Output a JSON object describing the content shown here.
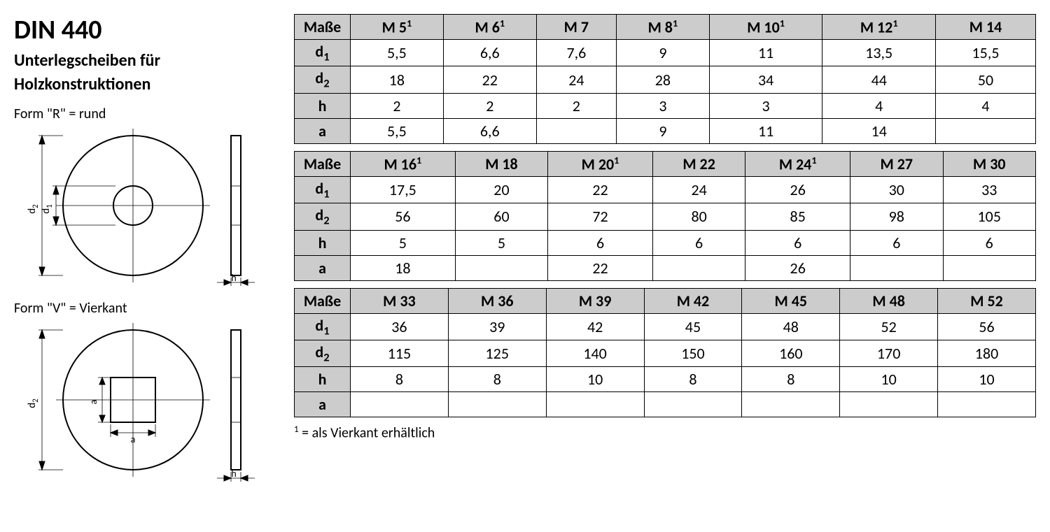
{
  "header": {
    "title": "DIN 440",
    "subtitle_l1": "Unterlegscheiben für",
    "subtitle_l2": "Holzkonstruktionen"
  },
  "forms": {
    "r_label": "Form \"R\" = rund",
    "v_label": "Form \"V\" = Vierkant"
  },
  "diagram_labels": {
    "d1": "d",
    "d2": "d",
    "h": "h",
    "a": "a"
  },
  "tables": {
    "header_label": "Maße",
    "row_labels": [
      "d",
      "d",
      "h",
      "a"
    ],
    "row_label_subs": [
      "1",
      "2",
      "",
      ""
    ],
    "groups": [
      {
        "sizes": [
          "M 5",
          "M 6",
          "M 7",
          "M 8",
          "M 10",
          "M 12",
          "M 14"
        ],
        "size_sup": [
          "1",
          "1",
          "",
          "1",
          "1",
          "1",
          ""
        ],
        "rows": [
          [
            "5,5",
            "6,6",
            "7,6",
            "9",
            "11",
            "13,5",
            "15,5"
          ],
          [
            "18",
            "22",
            "24",
            "28",
            "34",
            "44",
            "50"
          ],
          [
            "2",
            "2",
            "2",
            "3",
            "3",
            "4",
            "4"
          ],
          [
            "5,5",
            "6,6",
            "",
            "9",
            "11",
            "14",
            ""
          ]
        ]
      },
      {
        "sizes": [
          "M 16",
          "M 18",
          "M 20",
          "M 22",
          "M 24",
          "M 27",
          "M 30"
        ],
        "size_sup": [
          "1",
          "",
          "1",
          "",
          "1",
          "",
          ""
        ],
        "rows": [
          [
            "17,5",
            "20",
            "22",
            "24",
            "26",
            "30",
            "33"
          ],
          [
            "56",
            "60",
            "72",
            "80",
            "85",
            "98",
            "105"
          ],
          [
            "5",
            "5",
            "6",
            "6",
            "6",
            "6",
            "6"
          ],
          [
            "18",
            "",
            "22",
            "",
            "26",
            "",
            ""
          ]
        ]
      },
      {
        "sizes": [
          "M 33",
          "M 36",
          "M 39",
          "M 42",
          "M 45",
          "M 48",
          "M 52"
        ],
        "size_sup": [
          "",
          "",
          "",
          "",
          "",
          "",
          ""
        ],
        "rows": [
          [
            "36",
            "39",
            "42",
            "45",
            "48",
            "52",
            "56"
          ],
          [
            "115",
            "125",
            "140",
            "150",
            "160",
            "170",
            "180"
          ],
          [
            "8",
            "8",
            "10",
            "8",
            "8",
            "10",
            "10"
          ],
          [
            "",
            "",
            "",
            "",
            "",
            "",
            ""
          ]
        ]
      }
    ]
  },
  "footnote": {
    "sup": "1",
    "text": " = als Vierkant erhältlich"
  },
  "style": {
    "header_bg": "#cccccc",
    "border_color": "#000000",
    "font_family": "Calibri",
    "title_fontsize": 38,
    "cell_fontsize": 22,
    "diagram_stroke": "#000000",
    "diagram_stroke_thin": 0.8,
    "diagram_stroke_thick": 2
  }
}
